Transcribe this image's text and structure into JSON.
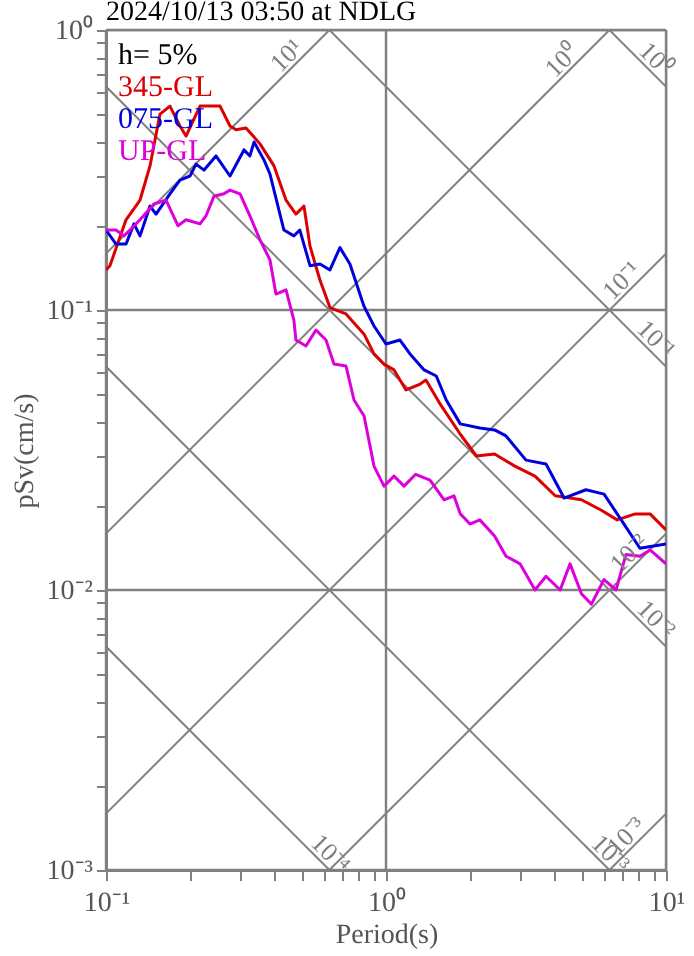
{
  "chart_data": {
    "type": "line",
    "title": "2024/10/13 03:50 at NDLG",
    "xlabel": "Period(s)",
    "ylabel": "pSv(cm/s)",
    "log": "xy",
    "grid": true,
    "legend": "top left",
    "xlim": [
      0.1,
      10
    ],
    "ylim": [
      0.001,
      1
    ],
    "xticks": [
      {
        "value": 0.1,
        "label": "10⁻¹"
      },
      {
        "value": 0.2,
        "label": null
      },
      {
        "value": 0.3,
        "label": null
      },
      {
        "value": 0.4,
        "label": null
      },
      {
        "value": 0.5,
        "label": null
      },
      {
        "value": 0.6,
        "label": null
      },
      {
        "value": 0.7,
        "label": null
      },
      {
        "value": 0.8,
        "label": null
      },
      {
        "value": 0.9,
        "label": null
      },
      {
        "value": 1,
        "label": "10⁰"
      },
      {
        "value": 2,
        "label": null
      },
      {
        "value": 3,
        "label": null
      },
      {
        "value": 4,
        "label": null
      },
      {
        "value": 5,
        "label": null
      },
      {
        "value": 6,
        "label": null
      },
      {
        "value": 7,
        "label": null
      },
      {
        "value": 8,
        "label": null
      },
      {
        "value": 9,
        "label": null
      },
      {
        "value": 10,
        "label": "10¹"
      }
    ],
    "yticks": [
      {
        "value": 0.001,
        "label": "10⁻³"
      },
      {
        "value": 0.002,
        "label": null
      },
      {
        "value": 0.003,
        "label": null
      },
      {
        "value": 0.004,
        "label": null
      },
      {
        "value": 0.005,
        "label": null
      },
      {
        "value": 0.006,
        "label": null
      },
      {
        "value": 0.007,
        "label": null
      },
      {
        "value": 0.008,
        "label": null
      },
      {
        "value": 0.009,
        "label": null
      },
      {
        "value": 0.01,
        "label": "10⁻²"
      },
      {
        "value": 0.02,
        "label": null
      },
      {
        "value": 0.03,
        "label": null
      },
      {
        "value": 0.04,
        "label": null
      },
      {
        "value": 0.05,
        "label": null
      },
      {
        "value": 0.06,
        "label": null
      },
      {
        "value": 0.07,
        "label": null
      },
      {
        "value": 0.08,
        "label": null
      },
      {
        "value": 0.09,
        "label": null
      },
      {
        "value": 0.1,
        "label": "10⁻¹"
      },
      {
        "value": 0.2,
        "label": null
      },
      {
        "value": 0.3,
        "label": null
      },
      {
        "value": 0.4,
        "label": null
      },
      {
        "value": 0.5,
        "label": null
      },
      {
        "value": 0.6,
        "label": null
      },
      {
        "value": 0.7,
        "label": null
      },
      {
        "value": 0.8,
        "label": null
      },
      {
        "value": 0.9,
        "label": null
      },
      {
        "value": 1,
        "label": "10⁰"
      }
    ],
    "annotations": [
      "h= 5%",
      {
        "text": "10¹",
        "x": 0.509,
        "y": 0.81
      },
      {
        "text": "10⁰",
        "x": 4.9,
        "y": 0.78
      },
      {
        "text": "10⁰",
        "x": 8.0,
        "y": 0.785
      },
      {
        "text": "10⁻¹",
        "x": 8.0,
        "y": 0.1273
      },
      {
        "text": "10⁻¹",
        "x": 8.0,
        "y": 0.0785
      },
      {
        "text": "10⁻²",
        "x": 8.5,
        "y": 0.01353
      },
      {
        "text": "10⁻²",
        "x": 8.0,
        "y": 0.00785
      },
      {
        "text": "10⁻³",
        "x": 5.5,
        "y": 0.001142
      },
      {
        "text": "10⁻³",
        "x": 8.3,
        "y": 0.00132
      },
      {
        "text": "10⁻⁴",
        "x": 0.55,
        "y": 0.001142
      }
    ],
    "series": [
      {
        "color": "#808080",
        "x": [
          6.28,
          10
        ],
        "values": [
          1,
          0.628
        ]
      },
      {
        "color": "#808080",
        "x": [
          0.628,
          10
        ],
        "values": [
          1,
          0.0628
        ]
      },
      {
        "color": "#808080",
        "x": [
          0.1,
          10
        ],
        "values": [
          0.628,
          0.00628
        ]
      },
      {
        "color": "#808080",
        "x": [
          0.1,
          6.28
        ],
        "values": [
          0.0628,
          0.001
        ]
      },
      {
        "color": "#808080",
        "x": [
          0.1,
          0.628
        ],
        "values": [
          0.00628,
          0.001
        ]
      },
      {
        "color": "#808080",
        "x": [
          0.1,
          0.628
        ],
        "values": [
          0.159,
          1
        ]
      },
      {
        "color": "#808080",
        "x": [
          0.1,
          6.28
        ],
        "values": [
          0.0159,
          1
        ]
      },
      {
        "color": "#808080",
        "x": [
          0.1,
          10
        ],
        "values": [
          0.00159,
          0.159
        ]
      },
      {
        "color": "#808080",
        "x": [
          0.628,
          10
        ],
        "values": [
          0.001,
          0.0159
        ]
      },
      {
        "color": "#808080",
        "x": [
          6.28,
          10
        ],
        "values": [
          0.001,
          0.00159
        ]
      },
      {
        "name": "345-GL",
        "color": "#dd0000",
        "x": [
          0.1,
          0.1033,
          0.1179,
          0.1323,
          0.1436,
          0.1559,
          0.1692,
          0.1837,
          0.1931,
          0.2166,
          0.2554,
          0.2772,
          0.2912,
          0.3162,
          0.3548,
          0.3981,
          0.4394,
          0.4768,
          0.5094,
          0.5353,
          0.5808,
          0.6306,
          0.7197,
          0.8349,
          0.9062,
          0.9836,
          1.068,
          1.179,
          1.324,
          1.389,
          1.56,
          1.842,
          2.104,
          2.442,
          2.884,
          3.405,
          4.02,
          4.989,
          5.857,
          6.691,
          7.766,
          8.77,
          10
        ],
        "values": [
          0.139,
          0.144,
          0.21,
          0.247,
          0.327,
          0.501,
          0.535,
          0.454,
          0.418,
          0.535,
          0.535,
          0.454,
          0.44,
          0.447,
          0.392,
          0.327,
          0.247,
          0.22,
          0.235,
          0.169,
          0.128,
          0.102,
          0.0968,
          0.082,
          0.0697,
          0.0641,
          0.0611,
          0.0518,
          0.0544,
          0.0562,
          0.0462,
          0.036,
          0.0301,
          0.0306,
          0.0277,
          0.0255,
          0.0217,
          0.021,
          0.0193,
          0.0178,
          0.0187,
          0.0187,
          0.0164
        ]
      },
      {
        "name": "075-GL",
        "color": "#0000dd",
        "x": [
          0.1,
          0.1086,
          0.1179,
          0.1259,
          0.1323,
          0.1436,
          0.1509,
          0.1692,
          0.1837,
          0.1995,
          0.2096,
          0.224,
          0.247,
          0.2772,
          0.311,
          0.3265,
          0.3379,
          0.3668,
          0.3851,
          0.4319,
          0.4688,
          0.4924,
          0.5353,
          0.5808,
          0.6306,
          0.6846,
          0.7433,
          0.8349,
          0.9062,
          1.0,
          1.122,
          1.218,
          1.368,
          1.512,
          1.641,
          1.842,
          2.163,
          2.442,
          2.683,
          3.162,
          3.728,
          4.325,
          5.179,
          6.007,
          7.079,
          8.072,
          10
        ],
        "values": [
          0.193,
          0.172,
          0.172,
          0.203,
          0.184,
          0.235,
          0.22,
          0.26,
          0.291,
          0.301,
          0.332,
          0.316,
          0.355,
          0.301,
          0.373,
          0.355,
          0.398,
          0.343,
          0.306,
          0.193,
          0.184,
          0.193,
          0.144,
          0.146,
          0.139,
          0.167,
          0.146,
          0.103,
          0.0877,
          0.0756,
          0.0781,
          0.0697,
          0.0611,
          0.0581,
          0.0477,
          0.0392,
          0.0379,
          0.0373,
          0.0355,
          0.0291,
          0.0282,
          0.0213,
          0.0228,
          0.022,
          0.0172,
          0.0141,
          0.0146
        ]
      },
      {
        "name": "UP-GL",
        "color": "#dd00dd",
        "x": [
          0.1,
          0.1086,
          0.1159,
          0.1218,
          0.1323,
          0.1483,
          0.1638,
          0.1807,
          0.1931,
          0.2166,
          0.2276,
          0.2431,
          0.2636,
          0.2772,
          0.3011,
          0.3265,
          0.3548,
          0.3851,
          0.4045,
          0.4394,
          0.4688,
          0.4768,
          0.5179,
          0.5623,
          0.6105,
          0.6518,
          0.7197,
          0.7686,
          0.8349,
          0.9062,
          0.9836,
          1.068,
          1.16,
          1.276,
          1.436,
          1.613,
          1.748,
          1.842,
          1.995,
          2.163,
          2.442,
          2.683,
          3.011,
          3.405,
          3.728,
          4.187,
          4.543,
          4.989,
          5.417,
          6.007,
          6.63,
          7.197,
          8.072,
          8.77,
          10
        ],
        "values": [
          0.193,
          0.193,
          0.184,
          0.193,
          0.21,
          0.239,
          0.247,
          0.2,
          0.21,
          0.203,
          0.217,
          0.255,
          0.26,
          0.268,
          0.26,
          0.217,
          0.178,
          0.151,
          0.114,
          0.118,
          0.0921,
          0.0781,
          0.0744,
          0.0848,
          0.0781,
          0.0641,
          0.0631,
          0.0477,
          0.0418,
          0.0277,
          0.0235,
          0.0255,
          0.0235,
          0.0259,
          0.0247,
          0.021,
          0.0217,
          0.0187,
          0.0172,
          0.0178,
          0.0156,
          0.0132,
          0.0124,
          0.01,
          0.0112,
          0.01,
          0.0124,
          0.0097,
          0.0089,
          0.0109,
          0.01,
          0.0134,
          0.0132,
          0.0139,
          0.0124
        ]
      }
    ]
  }
}
